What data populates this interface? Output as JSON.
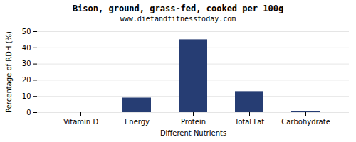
{
  "chart_data": {
    "type": "bar",
    "title": "Bison, ground, grass-fed, cooked per 100g",
    "subtitle": "www.dietandfitnesstoday.com",
    "xlabel": "Different Nutrients",
    "ylabel": "Percentage of RDH (%)",
    "categories": [
      "Vitamin D",
      "Energy",
      "Protein",
      "Total Fat",
      "Carbohydrate"
    ],
    "values": [
      0.0,
      9.0,
      45.0,
      13.0,
      0.5
    ],
    "color": "#263d73",
    "ylim": [
      0,
      50
    ],
    "yticks": [
      0,
      10,
      20,
      30,
      40,
      50
    ],
    "grid": true
  }
}
